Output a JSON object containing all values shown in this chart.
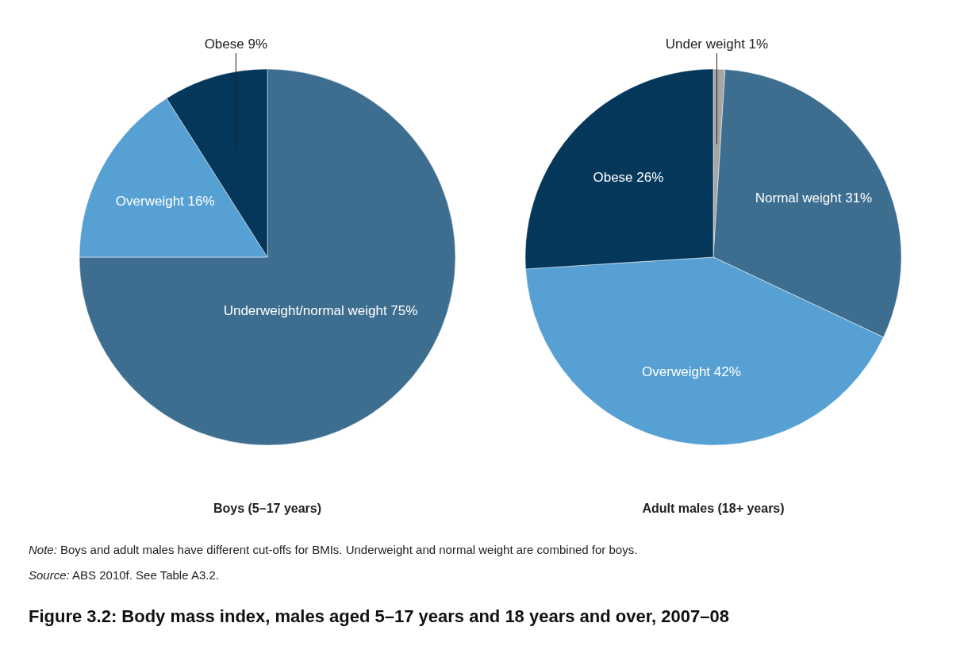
{
  "chart_data": [
    {
      "type": "pie",
      "title": "Boys (5–17 years)",
      "categories": [
        "Underweight/normal weight",
        "Overweight",
        "Obese"
      ],
      "values": [
        75,
        16,
        9
      ],
      "colors": [
        "#3d6e8f",
        "#56a0d3",
        "#04375a"
      ],
      "value_labels": [
        "75%",
        "16%",
        "9%"
      ]
    },
    {
      "type": "pie",
      "title": "Adult males (18+ years)",
      "categories": [
        "Under weight",
        "Normal weight",
        "Overweight",
        "Obese"
      ],
      "values": [
        1,
        31,
        42,
        26
      ],
      "colors": [
        "#a6a6a6",
        "#3d6e8f",
        "#56a0d3",
        "#04375a"
      ],
      "value_labels": [
        "1%",
        "31%",
        "42%",
        "26%"
      ],
      "annotations": [
        "Note: Boys and adult males have different cut-offs for BMIs. Underweight and normal weight are combined for boys.",
        "Source: ABS 2010f. See Table A3.2.",
        "Figure 3.2: Body mass index, males aged 5–17 years and 18 years and over, 2007–08"
      ]
    }
  ]
}
